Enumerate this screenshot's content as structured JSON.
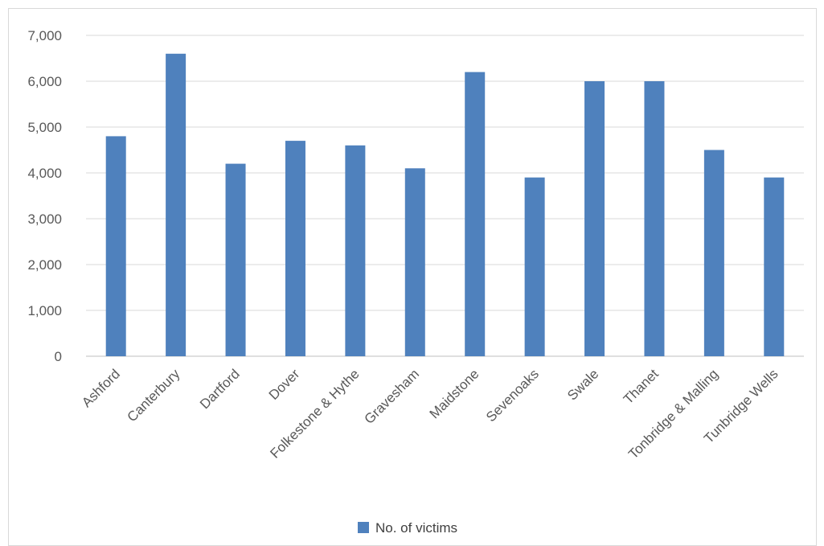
{
  "chart_data": {
    "type": "bar",
    "categories": [
      "Ashford",
      "Canterbury",
      "Dartford",
      "Dover",
      "Folkestone & Hythe",
      "Gravesham",
      "Maidstone",
      "Sevenoaks",
      "Swale",
      "Thanet",
      "Tonbridge & Malling",
      "Tunbridge Wells"
    ],
    "series": [
      {
        "name": "No. of victims",
        "values": [
          4800,
          6600,
          4200,
          4700,
          4600,
          4100,
          6200,
          3900,
          6000,
          6000,
          4500,
          3900
        ]
      }
    ],
    "ylim": [
      0,
      7000
    ],
    "yticks": [
      0,
      1000,
      2000,
      3000,
      4000,
      5000,
      6000,
      7000
    ],
    "ytick_labels": [
      "0",
      "1,000",
      "2,000",
      "3,000",
      "4,000",
      "5,000",
      "6,000",
      "7,000"
    ],
    "grid": true,
    "legend_position": "bottom",
    "colors": {
      "bar": "#4f81bd",
      "grid": "#d9d9d9",
      "axis": "#bfbfbf"
    }
  }
}
